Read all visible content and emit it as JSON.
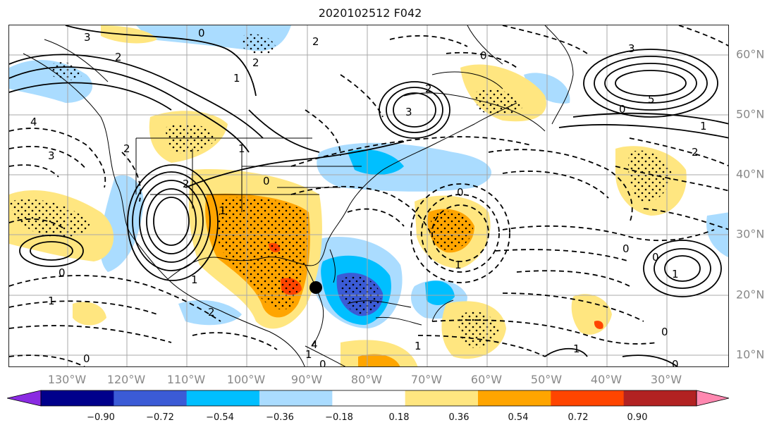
{
  "title": "2020102512 F042",
  "longitude_labels": [
    "130°W",
    "120°W",
    "110°W",
    "100°W",
    "90°W",
    "80°W",
    "70°W",
    "60°W",
    "50°W",
    "40°W",
    "30°W"
  ],
  "latitude_labels": [
    "60°N",
    "50°N",
    "40°N",
    "30°N",
    "20°N",
    "10°N"
  ],
  "colorbar": {
    "levels": [
      "−0.90",
      "−0.72",
      "−0.54",
      "−0.36",
      "−0.18",
      "0.18",
      "0.36",
      "0.54",
      "0.72",
      "0.90"
    ],
    "colors": [
      "#8a2be2",
      "#00008b",
      "#3b5bd6",
      "#00bfff",
      "#aadcff",
      "#ffffff",
      "#ffe680",
      "#ffa500",
      "#ff4500",
      "#b22222",
      "#ff88b0"
    ]
  },
  "colors": {
    "light_blue": "#aadcff",
    "cyan": "#00bfff",
    "blue": "#3b5bd6",
    "yellow": "#ffe680",
    "orange": "#ffa500",
    "red": "#ff4500",
    "storm_marker": "#000000"
  },
  "contour_labels": [
    "3",
    "2",
    "0",
    "2",
    "1",
    "2",
    "0",
    "3",
    "2",
    "3",
    "5",
    "0",
    "1",
    "2",
    "4",
    "3",
    "2",
    "1",
    "2",
    "1",
    "0",
    "0",
    "1",
    "1",
    "0",
    "1",
    "2",
    "0",
    "1",
    "1",
    "1",
    "0",
    "0",
    "1",
    "0",
    "4",
    "0",
    "0"
  ],
  "icons": [
    "storm-center-marker"
  ]
}
